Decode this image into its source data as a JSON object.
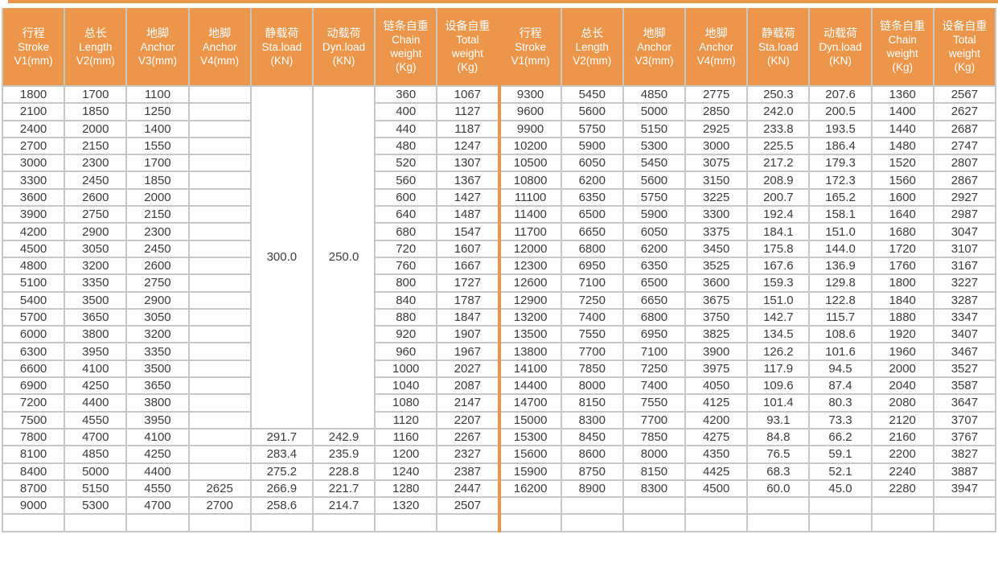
{
  "page": {
    "background": "#FFFFFF",
    "accent_color": "#EB964B",
    "grid_color": "#C7C7C7",
    "text_color": "#3B3B3B",
    "header_text_color": "#FFFFFF"
  },
  "table": {
    "header_columns": [
      {
        "lines": [
          "行程",
          "Stroke",
          "V1(mm)"
        ]
      },
      {
        "lines": [
          "总长",
          "Length",
          "V2(mm)"
        ]
      },
      {
        "lines": [
          "地脚",
          "Anchor",
          "V3(mm)"
        ]
      },
      {
        "lines": [
          "地脚",
          "Anchor",
          "V4(mm)"
        ]
      },
      {
        "lines": [
          "静载荷",
          "Sta.load",
          "(KN)"
        ]
      },
      {
        "lines": [
          "动载荷",
          "Dyn.load",
          "(KN)"
        ]
      },
      {
        "lines": [
          "链条自重",
          "Chain",
          "weight",
          "(Kg)"
        ]
      },
      {
        "lines": [
          "设备自重",
          "Total",
          "weight",
          "(Kg)"
        ]
      },
      {
        "lines": [
          "行程",
          "Stroke",
          "V1(mm)"
        ]
      },
      {
        "lines": [
          "总长",
          "Length",
          "V2(mm)"
        ]
      },
      {
        "lines": [
          "地脚",
          "Anchor",
          "V3(mm)"
        ]
      },
      {
        "lines": [
          "地脚",
          "Anchor",
          "V4(mm)"
        ]
      },
      {
        "lines": [
          "静载荷",
          "Sta.load",
          "(KN)"
        ]
      },
      {
        "lines": [
          "动载荷",
          "Dyn.load",
          "(KN)"
        ]
      },
      {
        "lines": [
          "链条自重",
          "Chain",
          "weight",
          "(Kg)"
        ]
      },
      {
        "lines": [
          "设备自重",
          "Total",
          "weight",
          "(Kg)"
        ]
      }
    ],
    "rows": [
      [
        "1800",
        "1700",
        "1100",
        "",
        {
          "text": "300.0",
          "rowspan": 20
        },
        {
          "text": "250.0",
          "rowspan": 20
        },
        "360",
        "1067",
        "9300",
        "5450",
        "4850",
        "2775",
        "250.3",
        "207.6",
        "1360",
        "2567"
      ],
      [
        "2100",
        "1850",
        "1250",
        "",
        null,
        null,
        "400",
        "1127",
        "9600",
        "5600",
        "5000",
        "2850",
        "242.0",
        "200.5",
        "1400",
        "2627"
      ],
      [
        "2400",
        "2000",
        "1400",
        "",
        null,
        null,
        "440",
        "1187",
        "9900",
        "5750",
        "5150",
        "2925",
        "233.8",
        "193.5",
        "1440",
        "2687"
      ],
      [
        "2700",
        "2150",
        "1550",
        "",
        null,
        null,
        "480",
        "1247",
        "10200",
        "5900",
        "5300",
        "3000",
        "225.5",
        "186.4",
        "1480",
        "2747"
      ],
      [
        "3000",
        "2300",
        "1700",
        "",
        null,
        null,
        "520",
        "1307",
        "10500",
        "6050",
        "5450",
        "3075",
        "217.2",
        "179.3",
        "1520",
        "2807"
      ],
      [
        "3300",
        "2450",
        "1850",
        "",
        null,
        null,
        "560",
        "1367",
        "10800",
        "6200",
        "5600",
        "3150",
        "208.9",
        "172.3",
        "1560",
        "2867"
      ],
      [
        "3600",
        "2600",
        "2000",
        "",
        null,
        null,
        "600",
        "1427",
        "11100",
        "6350",
        "5750",
        "3225",
        "200.7",
        "165.2",
        "1600",
        "2927"
      ],
      [
        "3900",
        "2750",
        "2150",
        "",
        null,
        null,
        "640",
        "1487",
        "11400",
        "6500",
        "5900",
        "3300",
        "192.4",
        "158.1",
        "1640",
        "2987"
      ],
      [
        "4200",
        "2900",
        "2300",
        "",
        null,
        null,
        "680",
        "1547",
        "11700",
        "6650",
        "6050",
        "3375",
        "184.1",
        "151.0",
        "1680",
        "3047"
      ],
      [
        "4500",
        "3050",
        "2450",
        "",
        null,
        null,
        "720",
        "1607",
        "12000",
        "6800",
        "6200",
        "3450",
        "175.8",
        "144.0",
        "1720",
        "3107"
      ],
      [
        "4800",
        "3200",
        "2600",
        "",
        null,
        null,
        "760",
        "1667",
        "12300",
        "6950",
        "6350",
        "3525",
        "167.6",
        "136.9",
        "1760",
        "3167"
      ],
      [
        "5100",
        "3350",
        "2750",
        "",
        null,
        null,
        "800",
        "1727",
        "12600",
        "7100",
        "6500",
        "3600",
        "159.3",
        "129.8",
        "1800",
        "3227"
      ],
      [
        "5400",
        "3500",
        "2900",
        "",
        null,
        null,
        "840",
        "1787",
        "12900",
        "7250",
        "6650",
        "3675",
        "151.0",
        "122.8",
        "1840",
        "3287"
      ],
      [
        "5700",
        "3650",
        "3050",
        "",
        null,
        null,
        "880",
        "1847",
        "13200",
        "7400",
        "6800",
        "3750",
        "142.7",
        "115.7",
        "1880",
        "3347"
      ],
      [
        "6000",
        "3800",
        "3200",
        "",
        null,
        null,
        "920",
        "1907",
        "13500",
        "7550",
        "6950",
        "3825",
        "134.5",
        "108.6",
        "1920",
        "3407"
      ],
      [
        "6300",
        "3950",
        "3350",
        "",
        null,
        null,
        "960",
        "1967",
        "13800",
        "7700",
        "7100",
        "3900",
        "126.2",
        "101.6",
        "1960",
        "3467"
      ],
      [
        "6600",
        "4100",
        "3500",
        "",
        null,
        null,
        "1000",
        "2027",
        "14100",
        "7850",
        "7250",
        "3975",
        "117.9",
        "94.5",
        "2000",
        "3527"
      ],
      [
        "6900",
        "4250",
        "3650",
        "",
        null,
        null,
        "1040",
        "2087",
        "14400",
        "8000",
        "7400",
        "4050",
        "109.6",
        "87.4",
        "2040",
        "3587"
      ],
      [
        "7200",
        "4400",
        "3800",
        "",
        null,
        null,
        "1080",
        "2147",
        "14700",
        "8150",
        "7550",
        "4125",
        "101.4",
        "80.3",
        "2080",
        "3647"
      ],
      [
        "7500",
        "4550",
        "3950",
        "",
        null,
        null,
        "1120",
        "2207",
        "15000",
        "8300",
        "7700",
        "4200",
        "93.1",
        "73.3",
        "2120",
        "3707"
      ],
      [
        "7800",
        "4700",
        "4100",
        "",
        "291.7",
        "242.9",
        "1160",
        "2267",
        "15300",
        "8450",
        "7850",
        "4275",
        "84.8",
        "66.2",
        "2160",
        "3767"
      ],
      [
        "8100",
        "4850",
        "4250",
        "",
        "283.4",
        "235.9",
        "1200",
        "2327",
        "15600",
        "8600",
        "8000",
        "4350",
        "76.5",
        "59.1",
        "2200",
        "3827"
      ],
      [
        "8400",
        "5000",
        "4400",
        "",
        "275.2",
        "228.8",
        "1240",
        "2387",
        "15900",
        "8750",
        "8150",
        "4425",
        "68.3",
        "52.1",
        "2240",
        "3887"
      ],
      [
        "8700",
        "5150",
        "4550",
        "2625",
        "266.9",
        "221.7",
        "1280",
        "2447",
        "16200",
        "8900",
        "8300",
        "4500",
        "60.0",
        "45.0",
        "2280",
        "3947"
      ],
      [
        "9000",
        "5300",
        "4700",
        "2700",
        "258.6",
        "214.7",
        "1320",
        "2507",
        "",
        "",
        "",
        "",
        "",
        "",
        "",
        ""
      ],
      [
        "",
        "",
        "",
        "",
        "",
        "",
        "",
        "",
        "",
        "",
        "",
        "",
        "",
        "",
        "",
        ""
      ]
    ]
  }
}
